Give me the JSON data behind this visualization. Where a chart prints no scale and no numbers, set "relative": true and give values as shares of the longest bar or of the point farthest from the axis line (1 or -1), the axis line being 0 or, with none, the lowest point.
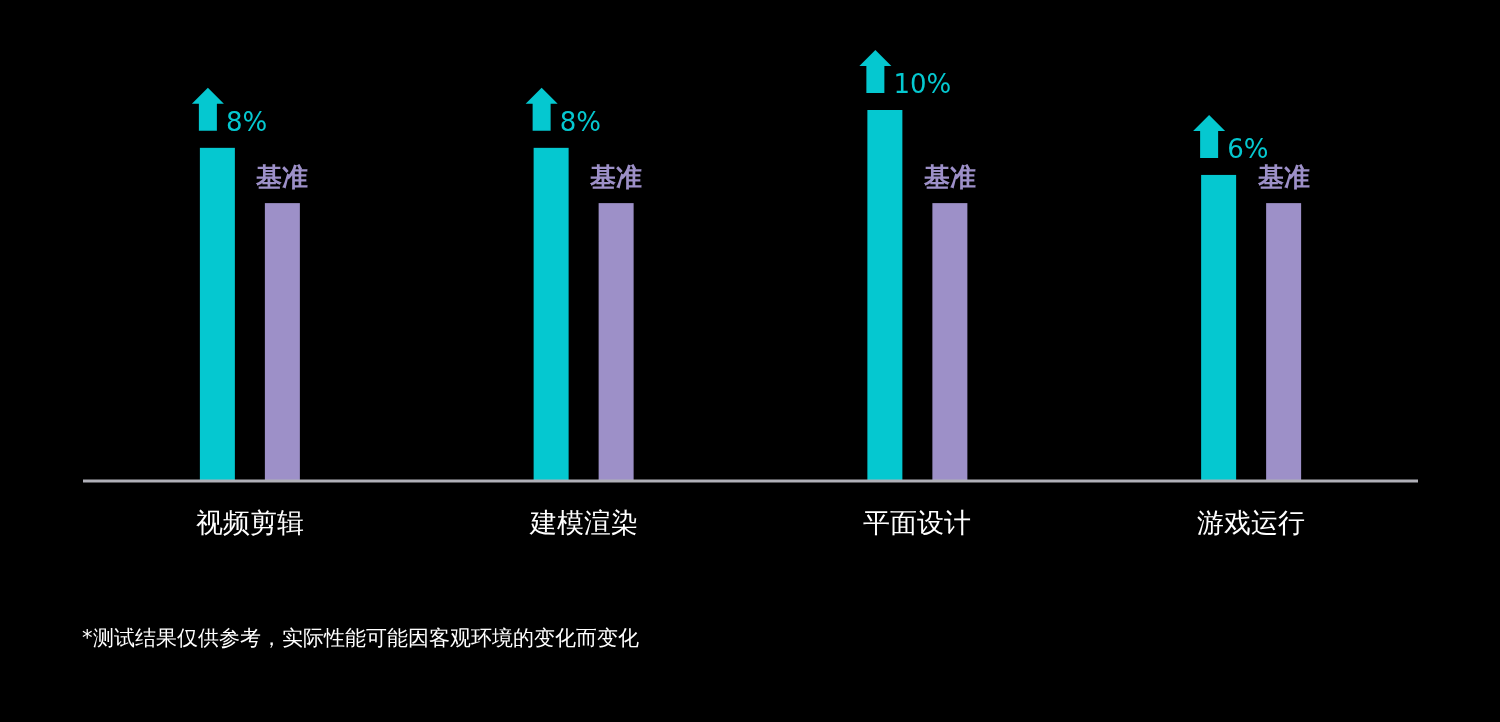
{
  "chart_data": {
    "type": "bar",
    "relative": true,
    "categories": [
      "视频剪辑",
      "建模渲染",
      "平面设计",
      "游戏运行"
    ],
    "series": [
      {
        "color": "#05c8d0",
        "values": [
          0.898,
          0.898,
          1,
          0.825
        ]
      },
      {
        "color": "#9d90c8",
        "values": [
          0.749,
          0.749,
          0.749,
          0.749
        ]
      }
    ],
    "annotations": [
      "8%",
      "基准",
      "8%",
      "基准",
      "10%",
      "基准",
      "6%",
      "基准",
      "*测试结果仅供参考，实际性能可能因客观环境的变化而变化"
    ]
  }
}
